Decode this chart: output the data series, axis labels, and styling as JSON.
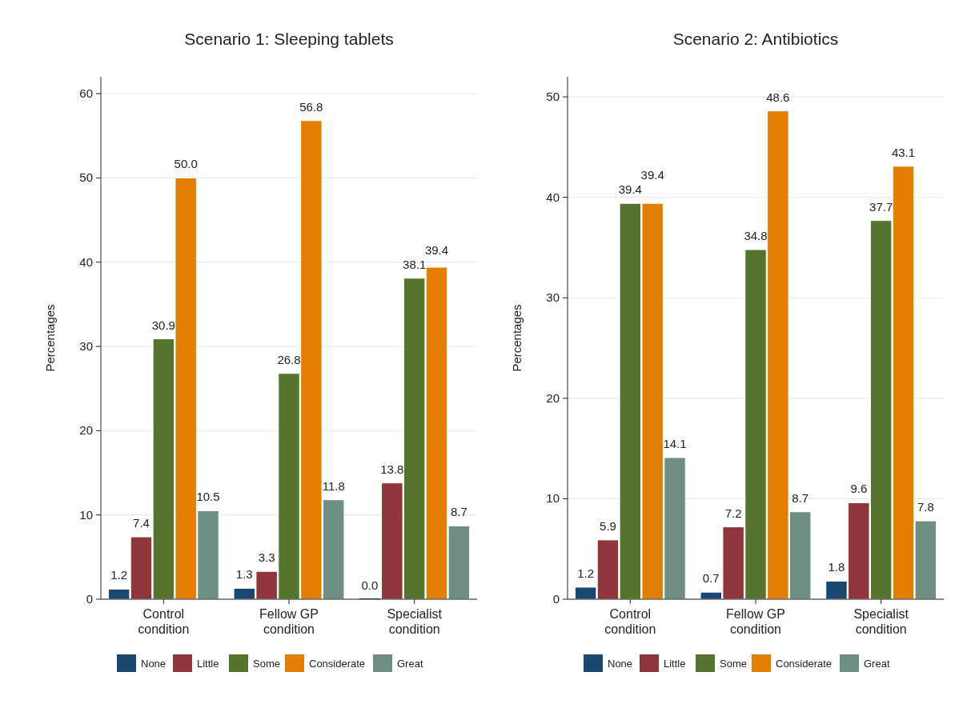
{
  "chart_data": [
    {
      "type": "bar",
      "title": "Scenario 1: Sleeping tablets",
      "ylabel": "Percentages",
      "categories": [
        "Control condition",
        "Fellow GP condition",
        "Specialist condition"
      ],
      "ylim": [
        0,
        62
      ],
      "yticks": [
        0,
        10,
        20,
        30,
        40,
        50,
        60
      ],
      "grid": "y",
      "legend": "bottom",
      "series": [
        {
          "name": "None",
          "color": "#1a476f",
          "values": [
            1.2,
            1.3,
            0.0
          ],
          "value_labels": [
            "1.2",
            "1.3",
            "0.0"
          ]
        },
        {
          "name": "Little",
          "color": "#90353b",
          "values": [
            7.4,
            3.3,
            13.8
          ],
          "value_labels": [
            "7.4",
            "3.3",
            "13.8"
          ]
        },
        {
          "name": "Some",
          "color": "#55752f",
          "values": [
            30.9,
            26.8,
            38.1
          ],
          "value_labels": [
            "30.9",
            "26.8",
            "38.1"
          ]
        },
        {
          "name": "Considerate",
          "color": "#e37e00",
          "values": [
            50.0,
            56.8,
            39.4
          ],
          "value_labels": [
            "50.0",
            "56.8",
            "39.4"
          ]
        },
        {
          "name": "Great",
          "color": "#6e8e84",
          "values": [
            10.5,
            11.8,
            8.7
          ],
          "value_labels": [
            "10.5",
            "11.8",
            "8.7"
          ]
        }
      ]
    },
    {
      "type": "bar",
      "title": "Scenario 2: Antibiotics",
      "ylabel": "Percentages",
      "categories": [
        "Control condition",
        "Fellow GP condition",
        "Specialist condition"
      ],
      "ylim": [
        0,
        52
      ],
      "yticks": [
        0,
        10,
        20,
        30,
        40,
        50
      ],
      "grid": "y",
      "legend": "bottom",
      "series": [
        {
          "name": "None",
          "color": "#1a476f",
          "values": [
            1.2,
            0.7,
            1.8
          ],
          "value_labels": [
            "1.2",
            "0.7",
            "1.8"
          ]
        },
        {
          "name": "Little",
          "color": "#90353b",
          "values": [
            5.9,
            7.2,
            9.6
          ],
          "value_labels": [
            "5.9",
            "7.2",
            "9.6"
          ]
        },
        {
          "name": "Some",
          "color": "#55752f",
          "values": [
            39.4,
            34.8,
            37.7
          ],
          "value_labels": [
            "39.4",
            "34.8",
            "37.7"
          ]
        },
        {
          "name": "Considerate",
          "color": "#e37e00",
          "values": [
            39.4,
            48.6,
            43.1
          ],
          "value_labels": [
            "39.4",
            "48.6",
            "43.1"
          ]
        },
        {
          "name": "Great",
          "color": "#6e8e84",
          "values": [
            14.1,
            8.7,
            7.8
          ],
          "value_labels": [
            "14.1",
            "8.7",
            "7.8"
          ]
        }
      ]
    }
  ]
}
